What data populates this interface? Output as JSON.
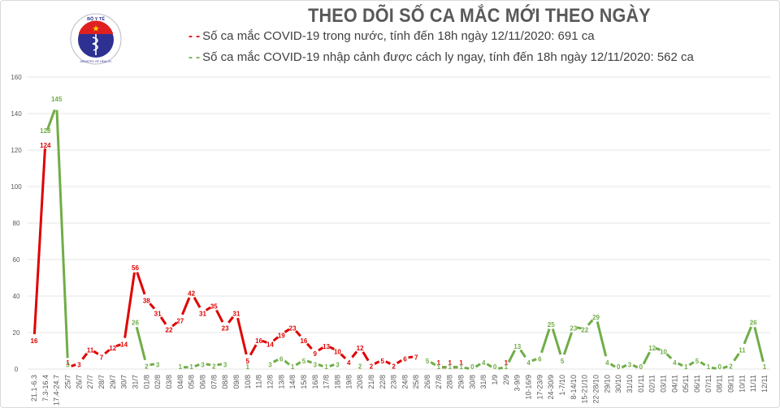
{
  "header": {
    "title": "THEO DÕI SỐ CA MẮC MỚI THEO NGÀY",
    "logo_text_top": "BỘ Y TẾ",
    "logo_text_bottom": "MINISTRY OF HEALTH"
  },
  "legend": [
    {
      "marker": "- -",
      "label": "Số ca mắc COVID-19 trong nước, tính đến 18h ngày 12/11/2020: 691 ca",
      "color": "#e00000"
    },
    {
      "marker": "- -",
      "label": "Số ca mắc COVID-19 nhập cảnh được cách ly ngay, tính đến 18h ngày 12/11/2020: 562 ca",
      "color": "#70ad47"
    }
  ],
  "colors": {
    "domestic": "#e00000",
    "imported": "#70ad47",
    "grid": "#e4e4e4",
    "axis_text": "#595959",
    "title": "#595959"
  },
  "chart_data": {
    "type": "line",
    "title": "THEO DÕI SỐ CA MẮC MỚI THEO NGÀY",
    "xlabel": "",
    "ylabel": "",
    "ylim": [
      0,
      160
    ],
    "yticks": [
      0,
      20,
      40,
      60,
      80,
      100,
      120,
      140,
      160
    ],
    "grid": true,
    "legend_position": "top",
    "categories": [
      "21.1-6.3",
      "7.3-16.4",
      "17.4-24.7",
      "25/7",
      "26/7",
      "27/7",
      "28/7",
      "29/7",
      "30/7",
      "31/7",
      "01/8",
      "02/8",
      "03/8",
      "04/8",
      "05/8",
      "06/8",
      "07/8",
      "08/8",
      "09/8",
      "10/8",
      "11/8",
      "12/8",
      "13/8",
      "14/8",
      "15/8",
      "16/8",
      "17/8",
      "18/8",
      "19/8",
      "20/8",
      "21/8",
      "22/8",
      "23/8",
      "24/8",
      "25/8",
      "26/8",
      "27/8",
      "28/8",
      "29/8",
      "30/8",
      "31/8",
      "1/9",
      "2/9",
      "3-9/9",
      "10-16/9",
      "17-23/9",
      "24-30/9",
      "1-7/10",
      "8-14/10",
      "15-21/10",
      "22-28/10",
      "29/10",
      "30/10",
      "31/10",
      "01/11",
      "02/11",
      "03/11",
      "04/11",
      "05/11",
      "06/11",
      "07/11",
      "08/11",
      "09/11",
      "10/11",
      "11/11",
      "12/11"
    ],
    "series": [
      {
        "name": "Số ca mắc COVID-19 trong nước, tính đến 18h ngày 12/11/2020: 691 ca",
        "color": "#e00000",
        "values": [
          16,
          124,
          null,
          1,
          3,
          11,
          7,
          12,
          14,
          56,
          38,
          31,
          22,
          27,
          42,
          31,
          35,
          23,
          31,
          5,
          16,
          14,
          19,
          23,
          16,
          9,
          13,
          10,
          4,
          12,
          2,
          5,
          2,
          6,
          7,
          null,
          1,
          1,
          1,
          null,
          null,
          null,
          1,
          null,
          null,
          null,
          null,
          null,
          null,
          null,
          null,
          null,
          null,
          null,
          null,
          null,
          null,
          null,
          null,
          null,
          null,
          null,
          null,
          null,
          null,
          null
        ]
      },
      {
        "name": "Số ca mắc COVID-19 nhập cảnh được cách ly ngay, tính đến 18h ngày 12/11/2020: 562 ca",
        "color": "#70ad47",
        "values": [
          null,
          128,
          145,
          3,
          null,
          null,
          null,
          null,
          null,
          26,
          2,
          3,
          null,
          1,
          1,
          3,
          2,
          3,
          null,
          1,
          null,
          3,
          6,
          1,
          5,
          3,
          1,
          3,
          null,
          2,
          null,
          null,
          null,
          null,
          null,
          5,
          1,
          1,
          1,
          0,
          4,
          0,
          1,
          13,
          4,
          6,
          25,
          5,
          23,
          22,
          29,
          4,
          0,
          3,
          0,
          12,
          10,
          4,
          1,
          5,
          1,
          0,
          2,
          11,
          26,
          1
        ]
      }
    ]
  }
}
